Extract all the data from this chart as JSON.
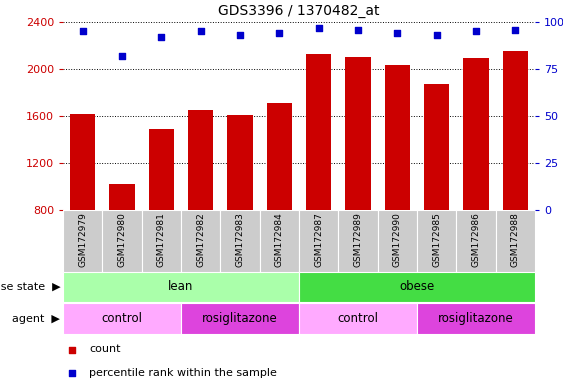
{
  "title": "GDS3396 / 1370482_at",
  "samples": [
    "GSM172979",
    "GSM172980",
    "GSM172981",
    "GSM172982",
    "GSM172983",
    "GSM172984",
    "GSM172987",
    "GSM172989",
    "GSM172990",
    "GSM172985",
    "GSM172986",
    "GSM172988"
  ],
  "counts": [
    1620,
    1020,
    1490,
    1650,
    1610,
    1710,
    2130,
    2100,
    2030,
    1870,
    2090,
    2150
  ],
  "percentile_ranks": [
    95,
    82,
    92,
    95,
    93,
    94,
    97,
    96,
    94,
    93,
    95,
    96
  ],
  "ylim_left": [
    800,
    2400
  ],
  "ylim_right": [
    0,
    100
  ],
  "yticks_left": [
    800,
    1200,
    1600,
    2000,
    2400
  ],
  "yticks_right": [
    0,
    25,
    50,
    75,
    100
  ],
  "bar_color": "#cc0000",
  "dot_color": "#0000cc",
  "grid_color": "#000000",
  "disease_state_groups": [
    {
      "label": "lean",
      "span": [
        0,
        6
      ],
      "color": "#aaffaa"
    },
    {
      "label": "obese",
      "span": [
        6,
        12
      ],
      "color": "#44dd44"
    }
  ],
  "agent_groups": [
    {
      "label": "control",
      "span": [
        0,
        3
      ],
      "color": "#ffaaff"
    },
    {
      "label": "rosiglitazone",
      "span": [
        3,
        6
      ],
      "color": "#dd44dd"
    },
    {
      "label": "control",
      "span": [
        6,
        9
      ],
      "color": "#ffaaff"
    },
    {
      "label": "rosiglitazone",
      "span": [
        9,
        12
      ],
      "color": "#dd44dd"
    }
  ],
  "legend_items": [
    {
      "label": "count",
      "color": "#cc0000"
    },
    {
      "label": "percentile rank within the sample",
      "color": "#0000cc"
    }
  ],
  "tick_label_color": "#cc0000",
  "right_tick_label_color": "#0000cc",
  "background_color": "#ffffff",
  "xticklabel_bg": "#cccccc",
  "fig_width": 5.63,
  "fig_height": 3.84,
  "dpi": 100
}
